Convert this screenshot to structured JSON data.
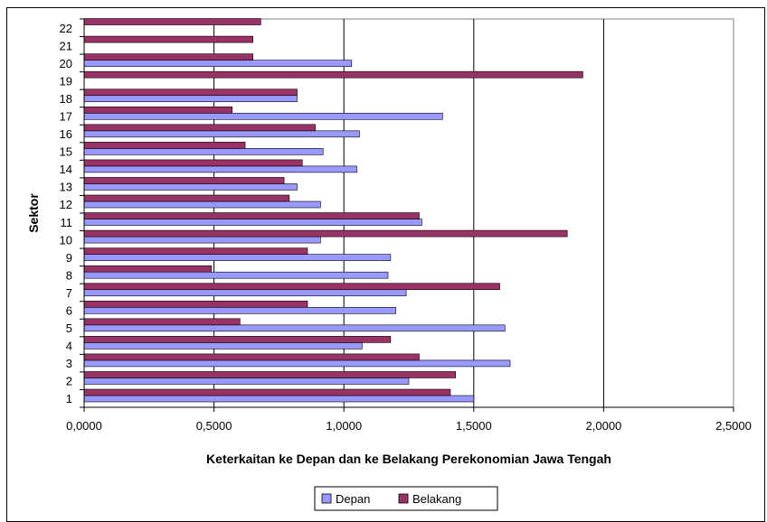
{
  "chart_data": {
    "type": "bar",
    "orientation": "horizontal",
    "title": "",
    "xlabel": "Keterkaitan ke Depan dan ke Belakang Perekonomian Jawa Tengah",
    "ylabel": "Sektor",
    "xlim": [
      0,
      2.5
    ],
    "x_ticks": [
      "0,0000",
      "0,5000",
      "1,0000",
      "1,5000",
      "2,0000",
      "2,5000"
    ],
    "categories": [
      "1",
      "2",
      "3",
      "4",
      "5",
      "6",
      "7",
      "8",
      "9",
      "10",
      "11",
      "12",
      "13",
      "14",
      "15",
      "16",
      "17",
      "18",
      "19",
      "20",
      "21",
      "22"
    ],
    "series": [
      {
        "name": "Depan",
        "color": "#9999ff",
        "values": [
          1.5,
          1.25,
          1.64,
          1.07,
          1.62,
          1.2,
          1.24,
          1.17,
          1.18,
          0.91,
          1.3,
          0.91,
          0.82,
          1.05,
          0.92,
          1.06,
          1.38,
          0.82,
          0.0,
          1.03,
          0.0,
          0.0
        ]
      },
      {
        "name": "Belakang",
        "color": "#993366",
        "values": [
          1.41,
          1.43,
          1.29,
          1.18,
          0.6,
          0.86,
          1.6,
          0.49,
          0.86,
          1.86,
          1.29,
          0.79,
          0.77,
          0.84,
          0.62,
          0.89,
          0.57,
          0.82,
          1.92,
          0.65,
          0.65,
          0.68
        ]
      }
    ],
    "grid": true,
    "legend": "bottom"
  }
}
